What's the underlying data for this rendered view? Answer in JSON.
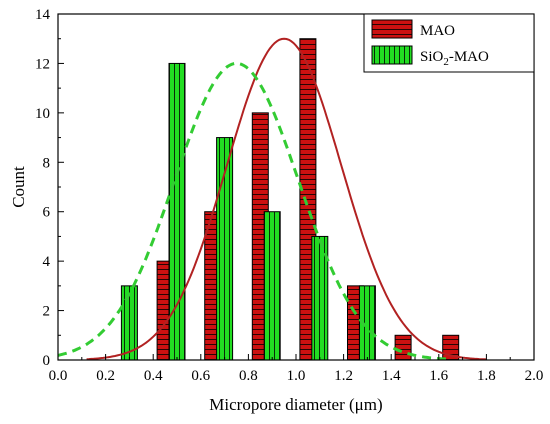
{
  "chart_data": {
    "type": "bar",
    "xlabel": "Micropore diameter (μm)",
    "ylabel": "Count",
    "xlim": [
      0.0,
      2.0
    ],
    "ylim": [
      0,
      14
    ],
    "x_ticks": [
      "0.0",
      "0.2",
      "0.4",
      "0.6",
      "0.8",
      "1.0",
      "1.2",
      "1.4",
      "1.6",
      "1.8",
      "2.0"
    ],
    "y_ticks": [
      "0",
      "2",
      "4",
      "6",
      "8",
      "10",
      "12",
      "14"
    ],
    "grid": false,
    "legend_position": "top-right",
    "series": [
      {
        "name": "MAO",
        "label_main": "MAO",
        "label_sub": "",
        "label_tail": "",
        "color": "#cc1111",
        "pattern": "horizontal-lines",
        "x": [
          0.45,
          0.65,
          0.85,
          1.05,
          1.25,
          1.45,
          1.65
        ],
        "values": [
          4,
          6,
          10,
          13,
          3,
          1,
          1
        ],
        "fit": {
          "type": "gaussian-curve",
          "color": "#b22222",
          "style": "solid",
          "peak_x": 0.95,
          "peak_y": 13,
          "x_range": [
            0.12,
            1.8
          ]
        }
      },
      {
        "name": "SiO2-MAO",
        "label_main": "SiO",
        "label_sub": "2",
        "label_tail": "-MAO",
        "color": "#22dd22",
        "pattern": "vertical-lines",
        "x": [
          0.3,
          0.5,
          0.7,
          0.9,
          1.1,
          1.3
        ],
        "values": [
          3,
          12,
          9,
          6,
          5,
          3
        ],
        "fit": {
          "type": "gaussian-curve",
          "color": "#33cc33",
          "style": "dashed",
          "peak_x": 0.75,
          "peak_y": 12,
          "x_range": [
            0.0,
            1.65
          ]
        }
      }
    ]
  }
}
